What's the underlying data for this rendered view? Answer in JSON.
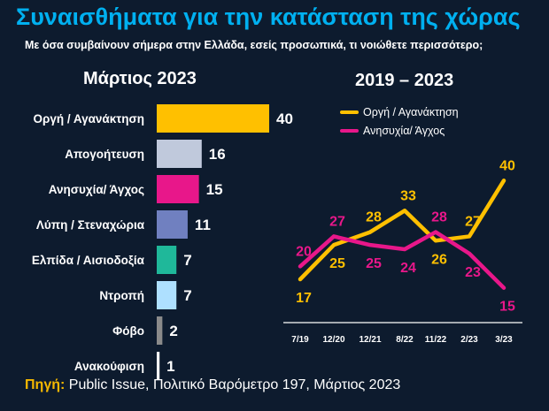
{
  "header": {
    "title": "Συναισθήματα για την κατάσταση της χώρας",
    "subtitle": "Με όσα συμβαίνουν σήμερα στην Ελλάδα, εσείς προσωπικά, τι νοιώθετε περισσότερο;"
  },
  "source": {
    "label": "Πηγή:",
    "text": "Public Issue, Πολιτικό Βαρόμετρο 197, Μάρτιος 2023"
  },
  "chart_data": [
    {
      "type": "bar",
      "orientation": "horizontal",
      "title": "Μάρτιος 2023",
      "categories": [
        "Οργή / Αγανάκτηση",
        "Απογοήτευση",
        "Ανησυχία/ Άγχος",
        "Λύπη / Στεναχώρια",
        "Ελπίδα / Αισιοδοξία",
        "Ντροπή",
        "Φόβο",
        "Ανακούφιση"
      ],
      "values": [
        40,
        16,
        15,
        11,
        7,
        7,
        2,
        1
      ],
      "colors": [
        "#ffc000",
        "#c0c9dc",
        "#e8178a",
        "#7080c0",
        "#1fb89a",
        "#aee0ff",
        "#8a8a8a",
        "#ffffff"
      ],
      "xlim": [
        0,
        40
      ]
    },
    {
      "type": "line",
      "title": "2019 – 2023",
      "categories": [
        "7/19",
        "12/20",
        "12/21",
        "8/22",
        "11/22",
        "2/23",
        "3/23"
      ],
      "series": [
        {
          "name": "Οργή / Αγανάκτηση",
          "color": "#ffc000",
          "values": [
            17,
            25,
            28,
            33,
            26,
            27,
            40
          ]
        },
        {
          "name": "Ανησυχία/ Άγχος",
          "color": "#e8178a",
          "values": [
            20,
            27,
            25,
            24,
            28,
            23,
            15
          ]
        }
      ],
      "ylim": [
        10,
        45
      ],
      "legend": "top"
    }
  ]
}
